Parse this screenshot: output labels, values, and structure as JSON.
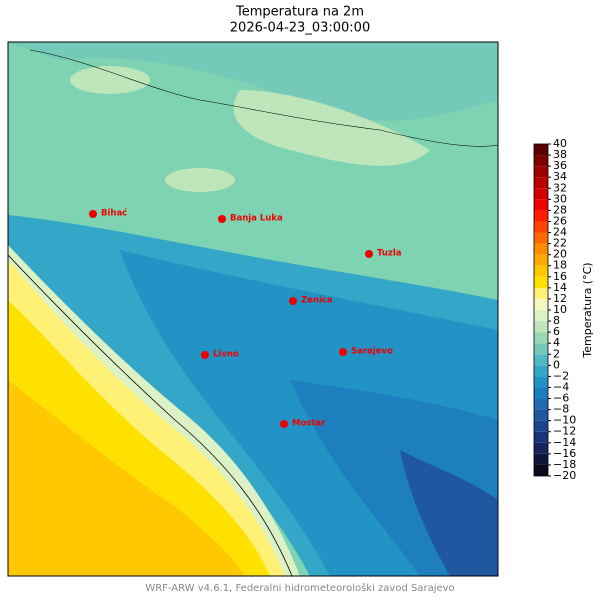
{
  "title": "Temperatura na 2m",
  "subtitle": "2026-04-23_03:00:00",
  "cities": [
    "Bihać",
    "Banja Luka",
    "Tuzla",
    "Zenica",
    "Sarajevo",
    "Livno",
    "Mostar"
  ],
  "colorbar": {
    "label": "Temperatura (°C)",
    "lim": [
      -20,
      40
    ],
    "ticks": [
      {
        "value": -20,
        "label": "−20"
      },
      {
        "value": -18,
        "label": "−18"
      },
      {
        "value": -16,
        "label": "−16"
      },
      {
        "value": -14,
        "label": "−14"
      },
      {
        "value": -12,
        "label": "−12"
      },
      {
        "value": -10,
        "label": "−10"
      },
      {
        "value": -8,
        "label": "−8"
      },
      {
        "value": -6,
        "label": "−6"
      },
      {
        "value": -4,
        "label": "−4"
      },
      {
        "value": -2,
        "label": "−2"
      },
      0,
      2,
      4,
      6,
      8,
      10,
      12,
      14,
      16,
      18,
      20,
      22,
      24,
      26,
      28,
      30,
      32,
      34,
      36,
      38,
      40
    ],
    "colors": [
      "#0a0a1a",
      "#10163a",
      "#15245a",
      "#1a347a",
      "#1e4590",
      "#1f57a0",
      "#1f6bb0",
      "#1d7fbd",
      "#2193c4",
      "#34a7c8",
      "#52b9c4",
      "#74c9b8",
      "#9ad8b5",
      "#bfe6bb",
      "#dcf2c6",
      "#f4f9c0",
      "#fff176",
      "#ffe100",
      "#ffc800",
      "#ffaa00",
      "#ff8c00",
      "#ff6a00",
      "#ff4500",
      "#ff1f00",
      "#f00000",
      "#d40000",
      "#b80000",
      "#9c0000",
      "#7c0000",
      "#5a0000"
    ]
  },
  "footer": "WRF-ARW v4.6.1, Federalni hidrometeorološki zavod Sarajevo"
}
